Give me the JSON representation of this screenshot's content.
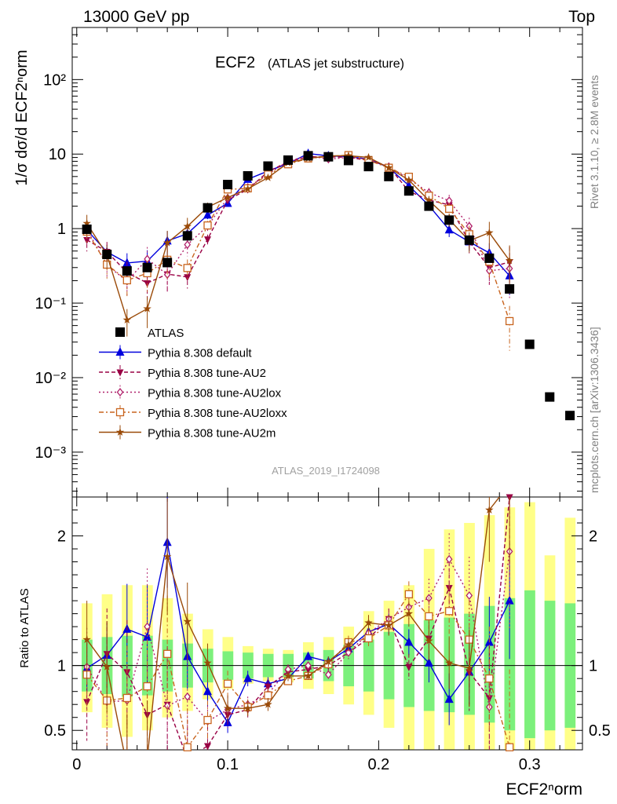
{
  "header": {
    "left": "13000 GeV pp",
    "right": "Top"
  },
  "plot": {
    "title": "ECF2",
    "subtitle": "(ATLAS jet substructure)",
    "ylabel_main": "1/σ dσ/d ECF2ⁿorm",
    "ylabel_ratio": "Ratio to ATLAS",
    "xlabel": "ECF2ⁿorm",
    "watermark": "ATLAS_2019_I1724098",
    "side_top": "Rivet 3.1.10, ≥ 2.8M events",
    "side_bottom": "mcplots.cern.ch [arXiv:1306.3436]"
  },
  "colors": {
    "ATLAS": "#000000",
    "default": "#0000dd",
    "AU2": "#990044",
    "AU2lox": "#b0206a",
    "AU2loxx": "#c8641e",
    "AU2m": "#9a4a08",
    "band_inner": "#7cf07c",
    "band_outer": "#ffff88"
  },
  "chart_data": {
    "type": "line",
    "x": [
      0.0067,
      0.02,
      0.0333,
      0.0467,
      0.06,
      0.0733,
      0.0867,
      0.1,
      0.1133,
      0.1267,
      0.14,
      0.1533,
      0.1667,
      0.18,
      0.1933,
      0.2067,
      0.22,
      0.2333,
      0.2467,
      0.26,
      0.2733,
      0.2867,
      0.3,
      0.3133,
      0.3267
    ],
    "xlim": [
      -0.003,
      0.335
    ],
    "ylim": [
      0.00025,
      500
    ],
    "yscale": "log",
    "ratio_ylim": [
      0.35,
      2.3
    ],
    "x_ticks": [
      "0",
      "0.1",
      "0.2",
      "0.3"
    ],
    "y_ticks": [
      "10⁻³",
      "10⁻²",
      "10⁻¹",
      "1",
      "10",
      "10²"
    ],
    "ratio_ticks": [
      "0.5",
      "1",
      "2"
    ],
    "legend": [
      "ATLAS",
      "Pythia 8.308 default",
      "Pythia 8.308 tune-AU2",
      "Pythia 8.308 tune-AU2lox",
      "Pythia 8.308 tune-AU2loxx",
      "Pythia 8.308 tune-AU2m"
    ],
    "legend_position": "lower-left",
    "data": [
      0.98,
      0.45,
      0.27,
      0.3,
      0.35,
      0.8,
      1.9,
      3.9,
      5.1,
      6.9,
      8.3,
      9.5,
      9.2,
      8.2,
      6.8,
      5.0,
      3.2,
      2.0,
      1.3,
      0.7,
      0.4,
      0.155,
      0.028,
      0.0055,
      0.0031
    ],
    "band_inner": [
      [
        0.8,
        1.2
      ],
      [
        0.78,
        1.22
      ],
      [
        0.76,
        1.23
      ],
      [
        0.77,
        1.23
      ],
      [
        0.8,
        1.2
      ],
      [
        0.83,
        1.17
      ],
      [
        0.87,
        1.13
      ],
      [
        0.89,
        1.11
      ],
      [
        0.9,
        1.1
      ],
      [
        0.91,
        1.09
      ],
      [
        0.91,
        1.09
      ],
      [
        0.9,
        1.1
      ],
      [
        0.88,
        1.12
      ],
      [
        0.84,
        1.16
      ],
      [
        0.8,
        1.2
      ],
      [
        0.74,
        1.26
      ],
      [
        0.68,
        1.32
      ],
      [
        0.65,
        1.35
      ],
      [
        0.64,
        1.37
      ],
      [
        0.62,
        1.4
      ],
      [
        0.56,
        1.46
      ],
      [
        0.5,
        1.52
      ],
      [
        0.44,
        1.58
      ],
      [
        0.5,
        1.5
      ],
      [
        0.52,
        1.48
      ]
    ],
    "band_outer": [
      [
        0.64,
        1.48
      ],
      [
        0.52,
        1.55
      ],
      [
        0.45,
        1.62
      ],
      [
        0.5,
        1.62
      ],
      [
        0.6,
        1.52
      ],
      [
        0.65,
        1.4
      ],
      [
        0.74,
        1.28
      ],
      [
        0.82,
        1.22
      ],
      [
        0.86,
        1.15
      ],
      [
        0.88,
        1.13
      ],
      [
        0.87,
        1.12
      ],
      [
        0.82,
        1.18
      ],
      [
        0.78,
        1.22
      ],
      [
        0.7,
        1.3
      ],
      [
        0.62,
        1.42
      ],
      [
        0.52,
        1.5
      ],
      [
        0.35,
        1.62
      ],
      [
        0.35,
        1.9
      ],
      [
        0.35,
        2.05
      ],
      [
        0.35,
        2.1
      ],
      [
        0.35,
        2.16
      ],
      [
        0.35,
        2.22
      ],
      [
        0.35,
        2.26
      ],
      [
        0.35,
        1.85
      ],
      [
        0.35,
        2.14
      ]
    ],
    "series": [
      {
        "name": "Pythia 8.308 default",
        "key": "default",
        "marker": "tri-up",
        "dash": "",
        "ratio": [
          0.98,
          1.08,
          1.28,
          1.22,
          1.95,
          1.07,
          0.8,
          0.56,
          0.9,
          0.86,
          0.9,
          1.07,
          1.03,
          1.13,
          1.26,
          1.32,
          1.18,
          1.02,
          0.74,
          0.95,
          1.18,
          1.5
        ],
        "err": [
          0.2,
          0.25,
          0.35,
          0.4,
          0.35,
          0.25,
          0.12,
          0.08,
          0.06,
          0.05,
          0.04,
          0.03,
          0.04,
          0.05,
          0.06,
          0.08,
          0.1,
          0.15,
          0.2,
          0.25,
          0.35,
          0.45
        ]
      },
      {
        "name": "Pythia 8.308 tune-AU2",
        "key": "AU2",
        "marker": "tri-down",
        "dash": "5,3",
        "ratio": [
          0.72,
          1.09,
          0.95,
          0.62,
          0.7,
          0.28,
          0.38,
          0.62,
          0.66,
          0.84,
          0.95,
          0.97,
          1.0,
          1.1,
          1.21,
          1.36,
          0.99,
          1.21,
          1.6,
          0.95,
          0.75,
          2.3
        ],
        "err": [
          0.3,
          0.35,
          0.4,
          0.45,
          0.45,
          0.3,
          0.15,
          0.1,
          0.06,
          0.05,
          0.04,
          0.03,
          0.04,
          0.05,
          0.06,
          0.08,
          0.1,
          0.15,
          0.2,
          0.3,
          0.4,
          0.6
        ]
      },
      {
        "name": "Pythia 8.308 tune-AU2lox",
        "key": "AU2lox",
        "marker": "diamond",
        "dash": "2,3",
        "ratio": [
          0.99,
          0.72,
          0.73,
          1.3,
          0.69,
          0.76,
          0.57,
          0.66,
          0.7,
          0.78,
          0.97,
          1.0,
          0.93,
          1.1,
          1.25,
          1.36,
          1.45,
          1.52,
          1.82,
          1.54,
          0.68,
          1.88
        ],
        "err": [
          0.3,
          0.35,
          0.4,
          0.45,
          0.45,
          0.3,
          0.15,
          0.1,
          0.06,
          0.05,
          0.04,
          0.03,
          0.04,
          0.05,
          0.06,
          0.08,
          0.1,
          0.15,
          0.2,
          0.3,
          0.4,
          0.6
        ]
      },
      {
        "name": "Pythia 8.308 tune-AU2loxx",
        "key": "AU2loxx",
        "marker": "square",
        "dash": "6,3,2,3",
        "ratio": [
          0.93,
          0.73,
          0.75,
          0.84,
          1.09,
          0.37,
          0.58,
          0.86,
          0.68,
          0.77,
          0.88,
          0.92,
          1.01,
          1.18,
          1.21,
          1.31,
          1.55,
          1.38,
          1.42,
          1.2,
          0.9,
          0.37
        ],
        "err": [
          0.3,
          0.35,
          0.4,
          0.45,
          0.45,
          0.3,
          0.15,
          0.1,
          0.06,
          0.05,
          0.04,
          0.03,
          0.04,
          0.05,
          0.06,
          0.08,
          0.1,
          0.15,
          0.2,
          0.3,
          0.4,
          0.6
        ]
      },
      {
        "name": "Pythia 8.308 tune-AU2m",
        "key": "AU2m",
        "marker": "star",
        "dash": "",
        "ratio": [
          1.2,
          0.99,
          0.22,
          0.28,
          1.84,
          1.34,
          1.02,
          0.67,
          0.67,
          0.7,
          0.92,
          0.92,
          1.03,
          1.16,
          1.33,
          1.31,
          1.4,
          1.19,
          1.02,
          0.98,
          2.2,
          2.4
        ],
        "err": [
          0.3,
          0.35,
          0.4,
          0.45,
          0.45,
          0.3,
          0.15,
          0.1,
          0.06,
          0.05,
          0.04,
          0.03,
          0.04,
          0.05,
          0.06,
          0.08,
          0.1,
          0.15,
          0.2,
          0.3,
          0.4,
          0.6
        ]
      }
    ]
  }
}
